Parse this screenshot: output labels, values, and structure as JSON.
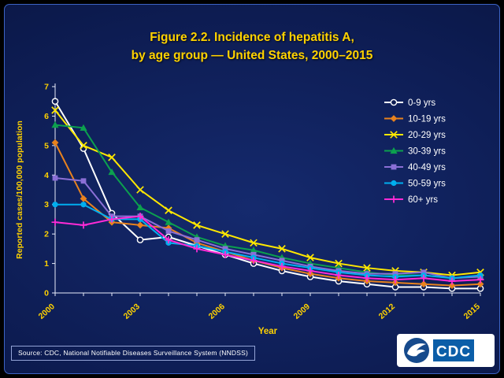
{
  "theme": {
    "background": "#0d1c52",
    "border": "#3c63c4",
    "title": "#ffd200",
    "text": "#ffffff",
    "hhs_navy": "#164a8c",
    "cdc_blue": "#0b5ea8"
  },
  "slide": {
    "title_line1": "Figure 2.2. Incidence of hepatitis A,",
    "title_line2": "by age group — United States, 2000–2015",
    "source": "Source: CDC, National Notifiable Diseases Surveillance System (NNDSS)",
    "logo": {
      "cdc_label": "CDC"
    }
  },
  "chart_data": {
    "type": "line",
    "title": "Figure 2.2. Incidence of hepatitis A, by age group — United States, 2000–2015",
    "xlabel": "Year",
    "ylabel": "Reported cases/100,000 population",
    "x": [
      2000,
      2001,
      2002,
      2003,
      2004,
      2005,
      2006,
      2007,
      2008,
      2009,
      2010,
      2011,
      2012,
      2013,
      2014,
      2015
    ],
    "x_tick_labels": [
      "2000",
      "2003",
      "2006",
      "2009",
      "2012",
      "2015"
    ],
    "ylim": [
      0,
      7
    ],
    "y_ticks": [
      0,
      1,
      2,
      3,
      4,
      5,
      6,
      7
    ],
    "grid": false,
    "legend_position": "inside-right",
    "colors": {
      "axis_line": "#e8ecfa",
      "axis_text": "#ffd200",
      "legend_text": "#ffffff",
      "marker_fill_bg": "#0d1c52"
    },
    "series": [
      {
        "name": "0-9 yrs",
        "color": "#ffffff",
        "marker": "circle-open",
        "values": [
          6.5,
          4.9,
          2.7,
          1.8,
          1.9,
          1.6,
          1.3,
          1.0,
          0.75,
          0.55,
          0.4,
          0.3,
          0.2,
          0.2,
          0.15,
          0.15
        ]
      },
      {
        "name": "10-19 yrs",
        "color": "#e8821e",
        "marker": "diamond",
        "values": [
          5.1,
          3.2,
          2.4,
          2.3,
          2.2,
          1.7,
          1.4,
          1.1,
          0.85,
          0.65,
          0.5,
          0.4,
          0.35,
          0.3,
          0.25,
          0.3
        ]
      },
      {
        "name": "20-29 yrs",
        "color": "#ffe800",
        "marker": "x",
        "values": [
          6.2,
          5.0,
          4.6,
          3.5,
          2.8,
          2.3,
          2.0,
          1.7,
          1.5,
          1.2,
          1.0,
          0.85,
          0.75,
          0.7,
          0.6,
          0.7
        ]
      },
      {
        "name": "30-39 yrs",
        "color": "#0ca04e",
        "marker": "triangle",
        "values": [
          5.7,
          5.6,
          4.1,
          2.9,
          2.4,
          1.9,
          1.6,
          1.45,
          1.2,
          1.0,
          0.85,
          0.7,
          0.6,
          0.6,
          0.5,
          0.55
        ]
      },
      {
        "name": "40-49 yrs",
        "color": "#8b6fd6",
        "marker": "square",
        "values": [
          3.9,
          3.8,
          2.6,
          2.6,
          2.1,
          1.8,
          1.5,
          1.3,
          1.1,
          0.9,
          0.75,
          0.65,
          0.65,
          0.7,
          0.5,
          0.55
        ]
      },
      {
        "name": "50-59 yrs",
        "color": "#00aeef",
        "marker": "circle",
        "values": [
          3.0,
          3.0,
          2.5,
          2.5,
          1.7,
          1.6,
          1.4,
          1.2,
          1.0,
          0.85,
          0.7,
          0.6,
          0.55,
          0.6,
          0.5,
          0.6
        ]
      },
      {
        "name": "60+ yrs",
        "color": "#ff2bd6",
        "marker": "plus",
        "values": [
          2.4,
          2.3,
          2.5,
          2.6,
          1.8,
          1.5,
          1.3,
          1.1,
          0.9,
          0.75,
          0.6,
          0.5,
          0.45,
          0.5,
          0.4,
          0.45
        ]
      }
    ]
  }
}
